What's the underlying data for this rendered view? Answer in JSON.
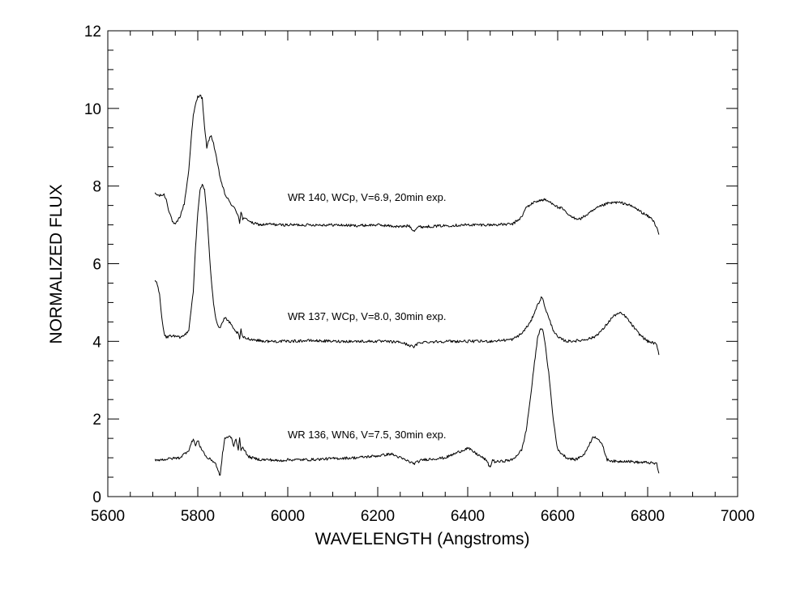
{
  "chart_data": {
    "type": "line",
    "title": "",
    "xlabel": "WAVELENGTH (Angstroms)",
    "ylabel": "NORMALIZED FLUX",
    "xlim": [
      5600,
      7000
    ],
    "ylim": [
      0,
      12
    ],
    "xticks": [
      5600,
      5800,
      6000,
      6200,
      6400,
      6600,
      6800,
      7000
    ],
    "yticks": [
      0,
      2,
      4,
      6,
      8,
      10,
      12
    ],
    "grid": false,
    "line_color": "#000000",
    "series": [
      {
        "name": "WR 140, WCp, V=6.9, 20min exp.",
        "label_at": [
          6000,
          7.62
        ],
        "x": [
          5705,
          5715,
          5725,
          5730,
          5735,
          5745,
          5750,
          5760,
          5770,
          5780,
          5785,
          5790,
          5795,
          5800,
          5805,
          5810,
          5815,
          5820,
          5825,
          5830,
          5835,
          5840,
          5845,
          5850,
          5855,
          5860,
          5870,
          5880,
          5890,
          5893,
          5896,
          5900,
          5910,
          5920,
          5940,
          5960,
          5980,
          6000,
          6050,
          6100,
          6150,
          6200,
          6250,
          6270,
          6280,
          6290,
          6300,
          6350,
          6400,
          6450,
          6500,
          6520,
          6530,
          6550,
          6570,
          6590,
          6600,
          6610,
          6620,
          6630,
          6650,
          6670,
          6690,
          6710,
          6730,
          6750,
          6770,
          6790,
          6810,
          6815,
          6820,
          6825
        ],
        "y": [
          7.8,
          7.75,
          7.78,
          7.65,
          7.4,
          7.05,
          7.0,
          7.2,
          7.55,
          8.4,
          9.2,
          9.8,
          10.1,
          10.3,
          10.35,
          10.25,
          9.5,
          9.0,
          9.2,
          9.3,
          9.1,
          8.8,
          8.5,
          8.2,
          8.0,
          7.8,
          7.6,
          7.45,
          7.25,
          7.05,
          7.35,
          7.15,
          7.15,
          7.05,
          7.0,
          7.02,
          7.0,
          7.0,
          7.0,
          7.0,
          6.98,
          7.0,
          6.95,
          6.98,
          6.85,
          6.95,
          6.95,
          6.98,
          7.0,
          7.0,
          7.02,
          7.2,
          7.45,
          7.6,
          7.65,
          7.55,
          7.45,
          7.42,
          7.3,
          7.2,
          7.15,
          7.3,
          7.45,
          7.55,
          7.58,
          7.55,
          7.45,
          7.3,
          7.15,
          7.05,
          6.95,
          6.75
        ]
      },
      {
        "name": "WR 137, WCp, V=8.0, 30min exp.",
        "label_at": [
          6000,
          4.55
        ],
        "x": [
          5705,
          5710,
          5715,
          5720,
          5725,
          5730,
          5740,
          5750,
          5760,
          5770,
          5780,
          5790,
          5795,
          5800,
          5805,
          5810,
          5815,
          5820,
          5825,
          5830,
          5835,
          5840,
          5845,
          5850,
          5855,
          5860,
          5870,
          5880,
          5890,
          5893,
          5896,
          5900,
          5920,
          5950,
          6000,
          6050,
          6100,
          6150,
          6200,
          6250,
          6270,
          6280,
          6290,
          6300,
          6350,
          6400,
          6450,
          6500,
          6520,
          6540,
          6550,
          6560,
          6565,
          6570,
          6580,
          6590,
          6600,
          6620,
          6650,
          6680,
          6700,
          6720,
          6730,
          6740,
          6750,
          6760,
          6780,
          6800,
          6815,
          6820,
          6825
        ],
        "y": [
          5.6,
          5.45,
          5.2,
          4.6,
          4.2,
          4.1,
          4.15,
          4.12,
          4.1,
          4.15,
          4.3,
          5.3,
          6.4,
          7.3,
          7.9,
          8.05,
          7.9,
          7.3,
          6.4,
          5.6,
          5.0,
          4.6,
          4.4,
          4.35,
          4.5,
          4.6,
          4.5,
          4.3,
          4.2,
          4.05,
          4.3,
          4.1,
          4.05,
          4.0,
          4.0,
          4.02,
          4.0,
          4.0,
          4.0,
          3.98,
          3.9,
          3.85,
          3.95,
          3.98,
          4.0,
          4.0,
          4.0,
          4.05,
          4.2,
          4.5,
          4.8,
          5.05,
          5.15,
          4.95,
          4.6,
          4.3,
          4.1,
          4.0,
          4.02,
          4.1,
          4.3,
          4.6,
          4.7,
          4.72,
          4.65,
          4.5,
          4.2,
          4.0,
          3.95,
          3.9,
          3.65
        ]
      },
      {
        "name": "WR 136, WN6, V=7.5, 30min exp.",
        "label_at": [
          6000,
          1.5
        ],
        "x": [
          5705,
          5720,
          5740,
          5760,
          5780,
          5790,
          5795,
          5800,
          5805,
          5810,
          5820,
          5830,
          5840,
          5845,
          5850,
          5855,
          5860,
          5870,
          5875,
          5880,
          5885,
          5890,
          5893,
          5896,
          5900,
          5910,
          5920,
          5940,
          5960,
          5980,
          6000,
          6050,
          6100,
          6150,
          6200,
          6230,
          6250,
          6280,
          6300,
          6350,
          6380,
          6400,
          6420,
          6440,
          6450,
          6455,
          6460,
          6470,
          6500,
          6520,
          6530,
          6540,
          6550,
          6555,
          6560,
          6565,
          6570,
          6580,
          6590,
          6600,
          6620,
          6640,
          6660,
          6670,
          6680,
          6690,
          6700,
          6710,
          6730,
          6750,
          6780,
          6800,
          6815,
          6820,
          6825
        ],
        "y": [
          0.95,
          0.95,
          0.98,
          1.0,
          1.2,
          1.5,
          1.3,
          1.45,
          1.3,
          1.2,
          1.0,
          0.95,
          0.85,
          0.65,
          0.55,
          1.1,
          1.5,
          1.55,
          1.5,
          1.3,
          1.5,
          1.2,
          1.55,
          1.15,
          1.3,
          1.05,
          1.0,
          0.95,
          0.95,
          0.92,
          0.95,
          0.95,
          0.98,
          1.0,
          1.05,
          1.1,
          1.0,
          0.85,
          0.95,
          1.0,
          1.15,
          1.25,
          1.1,
          0.95,
          0.75,
          0.95,
          0.9,
          0.9,
          0.95,
          1.2,
          1.7,
          2.6,
          3.6,
          4.05,
          4.3,
          4.35,
          4.1,
          3.2,
          2.0,
          1.2,
          1.0,
          0.95,
          1.1,
          1.35,
          1.55,
          1.5,
          1.3,
          0.95,
          0.9,
          0.92,
          0.88,
          0.88,
          0.85,
          0.85,
          0.6
        ]
      }
    ]
  }
}
